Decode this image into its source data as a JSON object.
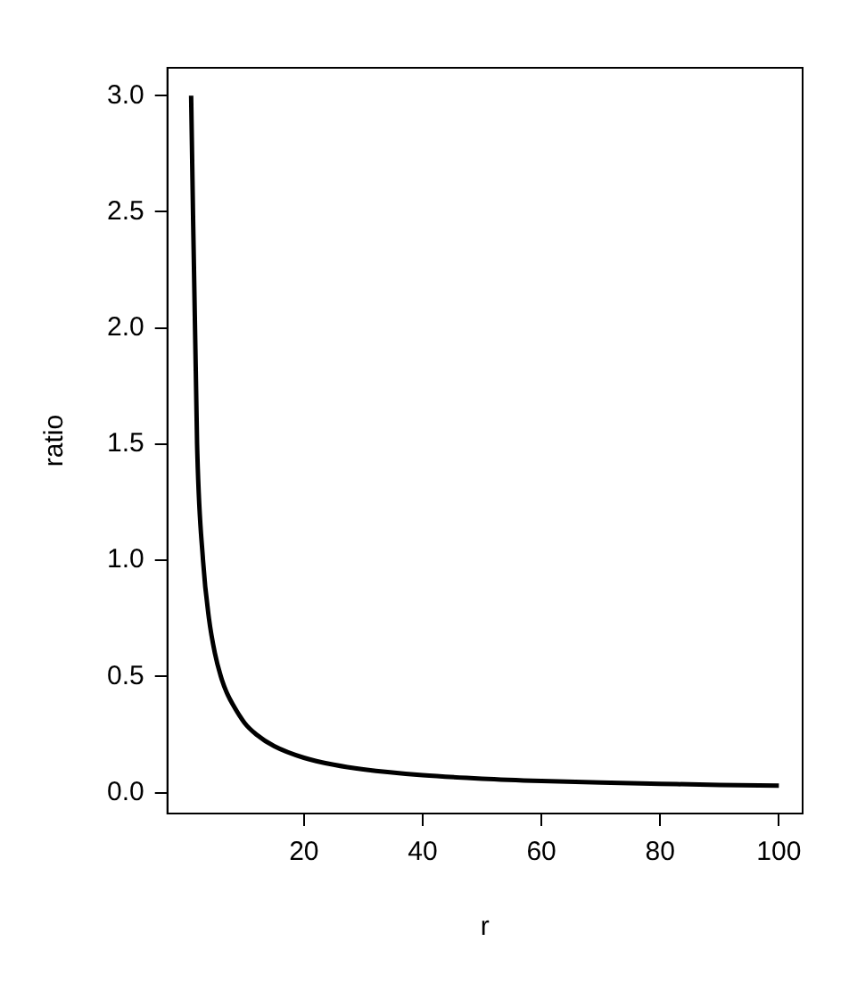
{
  "chart_data": {
    "type": "line",
    "xlabel": "r",
    "ylabel": "ratio",
    "x": [
      1,
      2,
      3,
      4,
      5,
      6,
      7,
      8,
      10,
      12,
      15,
      20,
      25,
      30,
      40,
      50,
      60,
      70,
      80,
      90,
      100
    ],
    "series": [
      {
        "color": "#000000",
        "values": [
          3,
          1.5,
          1,
          0.75,
          0.6,
          0.5,
          0.43,
          0.38,
          0.3,
          0.25,
          0.2,
          0.15,
          0.12,
          0.1,
          0.075,
          0.06,
          0.05,
          0.043,
          0.038,
          0.033,
          0.03
        ]
      }
    ],
    "xlim": [
      -3,
      104
    ],
    "ylim": [
      -0.09,
      3.12
    ],
    "xticks": [
      20,
      40,
      60,
      80,
      100
    ],
    "yticks": [
      {
        "value": 0,
        "label": "0.0"
      },
      {
        "value": 0.5,
        "label": "0.5"
      },
      {
        "value": 1,
        "label": "1.0"
      },
      {
        "value": 1.5,
        "label": "1.5"
      },
      {
        "value": 2,
        "label": "2.0"
      },
      {
        "value": 2.5,
        "label": "2.5"
      },
      {
        "value": 3,
        "label": "3.0"
      }
    ],
    "grid": false,
    "legend": false,
    "marker": "none",
    "line_style": "solid"
  }
}
